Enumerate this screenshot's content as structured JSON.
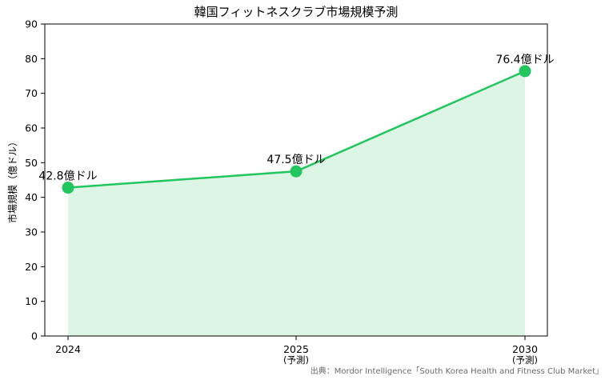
{
  "chart_data": {
    "type": "area",
    "title": "韓国フィットネスクラブ市場規模予測",
    "xlabel": "",
    "ylabel": "市場規模（億ドル）",
    "categories": [
      "2024",
      "2025\n(予測)",
      "2030\n(予測)"
    ],
    "x": [
      2024,
      2025,
      2030
    ],
    "series": [
      {
        "values": [
          42.8,
          47.5,
          76.4
        ],
        "data_labels": [
          "42.8億ドル",
          "47.5億ドル",
          "76.4億ドル"
        ]
      }
    ],
    "ylim": [
      0,
      90
    ],
    "yticks": [
      0,
      10,
      20,
      30,
      40,
      50,
      60,
      70,
      80,
      90
    ],
    "grid": false,
    "legend": "none",
    "colors": {
      "line": "#22c55e",
      "fill": "#dcf5e4"
    }
  },
  "source_note": "出典：Mordor Intelligence「South Korea Health and Fitness Club Market」"
}
